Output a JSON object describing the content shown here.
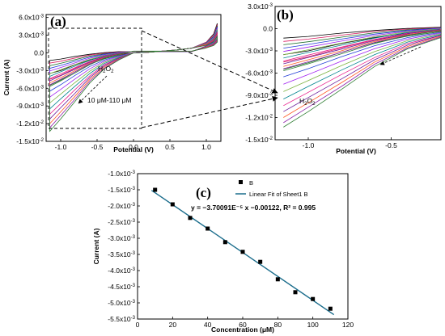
{
  "figure": {
    "panels": [
      "(a)",
      "(b)",
      "(c)"
    ]
  },
  "chart_data": [
    {
      "panel": "(a)",
      "type": "line",
      "xlabel": "Potential (V)",
      "ylabel": "Current (A)",
      "xlim": [
        -1.2,
        1.2
      ],
      "ylim": [
        -0.015,
        0.0065
      ],
      "xticks": [
        -1.0,
        -0.5,
        0.0,
        0.5,
        1.0
      ],
      "xtick_labels": [
        "-1.0",
        "-0.5",
        "0.0",
        "0.5",
        "1.0"
      ],
      "yticks": [
        0.006,
        0.003,
        0.0,
        -0.003,
        -0.006,
        -0.009,
        -0.012,
        -0.015
      ],
      "ytick_labels": [
        "6.0x10-3",
        "3.0x10-3",
        "0.0",
        "-3.0x10-3",
        "-6.0x10-3",
        "-9.0x10-3",
        "-1.2x10-2",
        "-1.5x10-2"
      ],
      "annotations": [
        "H2O2",
        "10 μM-110 μM"
      ],
      "series_count": 12,
      "curve_colors": [
        "#000000",
        "#d81b60",
        "#1e6f2a",
        "#1f3bd6",
        "#a020f0",
        "#7cb342",
        "#00838f",
        "#e91e8c",
        "#6a1b9a",
        "#ff5722",
        "#8e24aa",
        "#2e7d32"
      ],
      "series": [
        {
          "x": [
            -1.15,
            -1.0,
            -0.8,
            -0.6,
            -0.4,
            -0.2,
            0.0,
            0.2,
            0.4,
            0.6,
            0.8,
            1.0,
            1.1,
            1.15
          ],
          "values": [
            -0.0035,
            -0.003,
            -0.002,
            -0.0012,
            -0.0006,
            -0.0002,
            0.0,
            0.0001,
            0.0003,
            0.0005,
            0.0008,
            0.0018,
            0.0032,
            0.005
          ]
        },
        {
          "x": [
            -1.15,
            -1.0,
            -0.8,
            -0.6,
            -0.4,
            -0.2,
            0.0,
            0.2,
            0.4,
            0.6,
            0.8,
            1.0,
            1.1,
            1.15
          ],
          "values": [
            -0.0045,
            -0.0038,
            -0.0026,
            -0.0015,
            -0.0008,
            -0.0003,
            0.0,
            0.0001,
            0.0003,
            0.0005,
            0.0008,
            0.0018,
            0.003,
            0.0048
          ]
        },
        {
          "x": [
            -1.15,
            -1.0,
            -0.8,
            -0.6,
            -0.4,
            -0.2,
            0.0,
            0.2,
            0.4,
            0.6,
            0.8,
            1.0,
            1.1,
            1.15
          ],
          "values": [
            -0.0055,
            -0.0046,
            -0.0032,
            -0.0019,
            -0.001,
            -0.0004,
            0.0,
            0.0001,
            0.0003,
            0.0005,
            0.0008,
            0.0017,
            0.0028,
            0.0046
          ]
        },
        {
          "x": [
            -1.15,
            -1.0,
            -0.8,
            -0.6,
            -0.4,
            -0.2,
            0.0,
            0.2,
            0.4,
            0.6,
            0.8,
            1.0,
            1.1,
            1.15
          ],
          "values": [
            -0.0065,
            -0.0054,
            -0.0038,
            -0.0023,
            -0.0012,
            -0.0005,
            0.0,
            0.0001,
            0.0003,
            0.0005,
            0.0008,
            0.0017,
            0.0027,
            0.0044
          ]
        },
        {
          "x": [
            -1.15,
            -1.0,
            -0.8,
            -0.6,
            -0.4,
            -0.2,
            0.0,
            0.2,
            0.4,
            0.6,
            0.8,
            1.0,
            1.1,
            1.15
          ],
          "values": [
            -0.0075,
            -0.0062,
            -0.0044,
            -0.0027,
            -0.0014,
            -0.0006,
            0.0,
            0.0001,
            0.0003,
            0.0005,
            0.0008,
            0.0016,
            0.0026,
            0.0042
          ]
        },
        {
          "x": [
            -1.15,
            -1.0,
            -0.8,
            -0.6,
            -0.4,
            -0.2,
            0.0,
            0.2,
            0.4,
            0.6,
            0.8,
            1.0,
            1.1,
            1.15
          ],
          "values": [
            -0.0085,
            -0.007,
            -0.005,
            -0.0031,
            -0.0016,
            -0.0007,
            0.0,
            0.0001,
            0.0003,
            0.0005,
            0.0008,
            0.0016,
            0.0025,
            0.004
          ]
        },
        {
          "x": [
            -1.15,
            -1.0,
            -0.8,
            -0.6,
            -0.4,
            -0.2,
            0.0,
            0.2,
            0.4,
            0.6,
            0.8,
            1.0,
            1.1,
            1.15
          ],
          "values": [
            -0.0095,
            -0.0078,
            -0.0056,
            -0.0035,
            -0.0018,
            -0.0008,
            0.0,
            0.0001,
            0.0003,
            0.0005,
            0.0008,
            0.0015,
            0.0024,
            0.0038
          ]
        },
        {
          "x": [
            -1.15,
            -1.0,
            -0.8,
            -0.6,
            -0.4,
            -0.2,
            0.0,
            0.2,
            0.4,
            0.6,
            0.8,
            1.0,
            1.1,
            1.15
          ],
          "values": [
            -0.0104,
            -0.0086,
            -0.0062,
            -0.0039,
            -0.002,
            -0.0009,
            0.0,
            0.0001,
            0.0003,
            0.0005,
            0.0008,
            0.0015,
            0.0023,
            0.0036
          ]
        },
        {
          "x": [
            -1.15,
            -1.0,
            -0.8,
            -0.6,
            -0.4,
            -0.2,
            0.0,
            0.2,
            0.4,
            0.6,
            0.8,
            1.0,
            1.1,
            1.15
          ],
          "values": [
            -0.0112,
            -0.0093,
            -0.0068,
            -0.0042,
            -0.0022,
            -0.0009,
            0.0,
            0.0001,
            0.0003,
            0.0005,
            0.0008,
            0.0014,
            0.0022,
            0.0034
          ]
        },
        {
          "x": [
            -1.15,
            -1.0,
            -0.8,
            -0.6,
            -0.4,
            -0.2,
            0.0,
            0.2,
            0.4,
            0.6,
            0.8,
            1.0,
            1.1,
            1.15
          ],
          "values": [
            -0.012,
            -0.01,
            -0.0073,
            -0.0045,
            -0.0024,
            -0.001,
            0.0,
            0.0001,
            0.0003,
            0.0005,
            0.0008,
            0.0014,
            0.0021,
            0.0032
          ]
        },
        {
          "x": [
            -1.15,
            -1.0,
            -0.8,
            -0.6,
            -0.4,
            -0.2,
            0.0,
            0.2,
            0.4,
            0.6,
            0.8,
            1.0,
            1.1,
            1.15
          ],
          "values": [
            -0.0127,
            -0.0106,
            -0.0078,
            -0.0048,
            -0.0026,
            -0.0011,
            0.0,
            0.0001,
            0.0003,
            0.0005,
            0.0008,
            0.0013,
            0.002,
            0.003
          ]
        },
        {
          "x": [
            -1.15,
            -1.0,
            -0.8,
            -0.6,
            -0.4,
            -0.2,
            0.0,
            0.2,
            0.4,
            0.6,
            0.8,
            1.0,
            1.1,
            1.15
          ],
          "values": [
            -0.0133,
            -0.0112,
            -0.0082,
            -0.0051,
            -0.0027,
            -0.0012,
            0.0,
            0.0001,
            0.0003,
            0.0005,
            0.0008,
            0.0013,
            0.0019,
            0.0028
          ]
        }
      ]
    },
    {
      "panel": "(b)",
      "type": "line",
      "xlabel": "Potential (V)",
      "ylabel": "",
      "xlim": [
        -1.2,
        -0.2
      ],
      "ylim": [
        -0.015,
        0.003
      ],
      "xticks": [
        -1.0,
        -0.5
      ],
      "xtick_labels": [
        "-1.0",
        "-0.5"
      ],
      "yticks": [
        0.003,
        0.0,
        -0.003,
        -0.006,
        -0.009,
        -0.012,
        -0.015
      ],
      "ytick_labels": [
        "3.0x10-3",
        "0.0",
        "-3.0x10-3",
        "-6.0x10-3",
        "-9.0x10-3",
        "-1.2x10-2",
        "-1.5x10-2"
      ],
      "annotations": [
        "H2O2"
      ],
      "series_count": 12
    },
    {
      "panel": "(c)",
      "type": "scatter",
      "xlabel": "Concentration (μM)",
      "ylabel": "Current (A)",
      "xlim": [
        0,
        120
      ],
      "ylim": [
        -0.0055,
        -0.001
      ],
      "xticks": [
        0,
        20,
        40,
        60,
        80,
        100,
        120
      ],
      "xtick_labels": [
        "0",
        "20",
        "40",
        "60",
        "80",
        "100",
        "120"
      ],
      "yticks": [
        -0.001,
        -0.0015,
        -0.002,
        -0.0025,
        -0.003,
        -0.0035,
        -0.004,
        -0.0045,
        -0.005,
        -0.0055
      ],
      "ytick_labels": [
        "-1.0x10-3",
        "-1.5x10-3",
        "-2.0x10-3",
        "-2.5x10-3",
        "-3.0x10-3",
        "-3.5x10-3",
        "-4.0x10-3",
        "-4.5x10-3",
        "-5.0x10-3",
        "-5.5x10-3"
      ],
      "series": [
        {
          "name": "B",
          "x": [
            10,
            20,
            30,
            40,
            50,
            60,
            70,
            80,
            90,
            100,
            110
          ],
          "values": [
            -0.0015,
            -0.00195,
            -0.00237,
            -0.0027,
            -0.00312,
            -0.00342,
            -0.00373,
            -0.00427,
            -0.00467,
            -0.00488,
            -0.00518
          ]
        },
        {
          "name": "Linear Fit of Sheet1 B",
          "slope": -3.70091e-05,
          "intercept": -0.00122
        }
      ],
      "equation": "y = −3.70091E⁻⁵ x −0.00122, R² = 0.995",
      "legend": [
        "B",
        "Linear Fit of Sheet1 B"
      ],
      "fit_color": "#1b6d8c"
    }
  ]
}
